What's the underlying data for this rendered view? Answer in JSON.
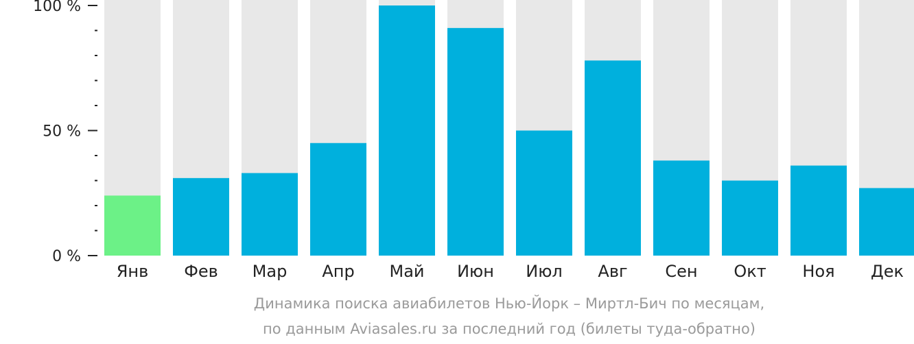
{
  "chart_data": {
    "type": "bar",
    "categories": [
      "Янв",
      "Фев",
      "Мар",
      "Апр",
      "Май",
      "Июн",
      "Июл",
      "Авг",
      "Сен",
      "Окт",
      "Ноя",
      "Дек"
    ],
    "values": [
      24,
      31,
      33,
      45,
      100,
      91,
      50,
      78,
      38,
      30,
      36,
      27
    ],
    "ylim": [
      0,
      100
    ],
    "y_ticks": [
      {
        "value": 0,
        "label": "0 %"
      },
      {
        "value": 50,
        "label": "50 %"
      },
      {
        "value": 100,
        "label": "100 %"
      }
    ],
    "y_minor_step": 10,
    "caption": [
      "Динамика поиска авиабилетов Нью-Йорк – Миртл-Бич по месяцам,",
      "по данным Aviasales.ru за последний год (билеты туда-обратно)"
    ],
    "highlight_index": 0,
    "colors": {
      "bar": "#00b0dd",
      "highlight": "#6cf187",
      "background_bar": "#e8e8e8",
      "axis": "#222222",
      "caption": "#9a9a9a"
    }
  }
}
